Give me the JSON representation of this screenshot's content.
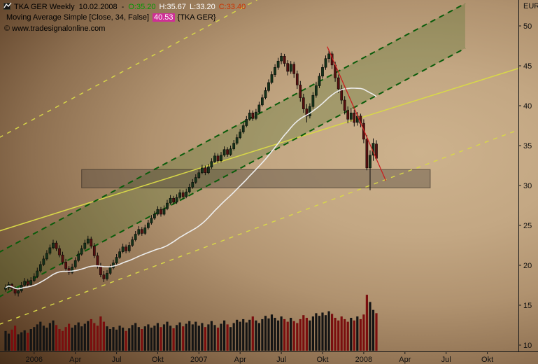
{
  "header": {
    "title": "TKA GER Weekly",
    "date": "10.02.2008",
    "sep": "-",
    "open_label": "O:35.20",
    "high_label": "H:35.67",
    "low_label": "L:33.20",
    "close_label": "C:33.40",
    "indicator": {
      "name": "Moving Average Simple [Close, 34, False]",
      "value": "40.53",
      "suffix": "{TKA GER}"
    },
    "copyright": "© www.tradesignalonline.com"
  },
  "chart_data": {
    "type": "candlestick_with_volume",
    "title": "TKA GER Weekly",
    "currency_label": "EUR",
    "price_ticks": [
      50,
      45,
      40,
      35,
      30,
      25,
      20,
      15,
      10
    ],
    "price_range": [
      10,
      50
    ],
    "time_ticks": [
      {
        "label": "2006",
        "week": 9
      },
      {
        "label": "Apr",
        "week": 22
      },
      {
        "label": "Jul",
        "week": 35
      },
      {
        "label": "Okt",
        "week": 48
      },
      {
        "label": "2007",
        "week": 61
      },
      {
        "label": "Apr",
        "week": 74
      },
      {
        "label": "Jul",
        "week": 87
      },
      {
        "label": "Okt",
        "week": 100
      },
      {
        "label": "2008",
        "week": 113
      },
      {
        "label": "Apr",
        "week": 126
      },
      {
        "label": "Jul",
        "week": 139
      },
      {
        "label": "Okt",
        "week": 152
      }
    ],
    "last_candle": {
      "date": "10.02.2008",
      "open": 35.2,
      "high": 35.67,
      "low": 33.2,
      "close": 33.4
    },
    "candles": [
      [
        17.0,
        17.6,
        16.7,
        17.2
      ],
      [
        17.2,
        17.9,
        16.9,
        17.6
      ],
      [
        17.6,
        17.8,
        16.8,
        17.1
      ],
      [
        17.1,
        17.4,
        16.2,
        16.5
      ],
      [
        16.5,
        17.2,
        16.1,
        16.8
      ],
      [
        16.8,
        17.9,
        16.6,
        17.5
      ],
      [
        17.5,
        18.4,
        17.3,
        18.0
      ],
      [
        18.0,
        18.3,
        17.3,
        17.6
      ],
      [
        17.6,
        18.5,
        17.4,
        18.1
      ],
      [
        18.1,
        19.0,
        17.9,
        18.6
      ],
      [
        18.6,
        19.7,
        18.4,
        19.3
      ],
      [
        19.3,
        20.5,
        19.1,
        20.1
      ],
      [
        20.1,
        21.2,
        19.9,
        20.8
      ],
      [
        20.8,
        21.9,
        20.6,
        21.5
      ],
      [
        21.5,
        22.6,
        21.3,
        22.2
      ],
      [
        22.2,
        23.2,
        22.0,
        22.8
      ],
      [
        22.8,
        23.1,
        21.8,
        22.1
      ],
      [
        22.1,
        22.5,
        21.0,
        21.3
      ],
      [
        21.3,
        21.7,
        20.1,
        20.4
      ],
      [
        20.4,
        20.8,
        19.3,
        19.6
      ],
      [
        19.6,
        19.9,
        18.8,
        19.1
      ],
      [
        19.1,
        20.2,
        18.9,
        19.8
      ],
      [
        19.8,
        21.0,
        19.6,
        20.6
      ],
      [
        20.6,
        21.8,
        20.4,
        21.4
      ],
      [
        21.4,
        22.5,
        21.2,
        22.1
      ],
      [
        22.1,
        23.2,
        21.9,
        22.8
      ],
      [
        22.8,
        23.7,
        22.6,
        23.3
      ],
      [
        23.3,
        23.6,
        22.1,
        22.4
      ],
      [
        22.4,
        22.8,
        20.9,
        21.2
      ],
      [
        21.2,
        21.6,
        19.6,
        19.9
      ],
      [
        19.9,
        20.3,
        18.5,
        18.8
      ],
      [
        18.8,
        19.3,
        17.9,
        18.3
      ],
      [
        18.3,
        19.4,
        18.1,
        19.0
      ],
      [
        19.0,
        20.1,
        18.8,
        19.7
      ],
      [
        19.7,
        20.7,
        19.5,
        20.3
      ],
      [
        20.3,
        21.4,
        20.1,
        21.0
      ],
      [
        21.0,
        22.1,
        20.8,
        21.7
      ],
      [
        21.7,
        22.7,
        21.5,
        22.3
      ],
      [
        22.3,
        22.6,
        21.5,
        21.8
      ],
      [
        21.8,
        22.9,
        21.6,
        22.5
      ],
      [
        22.5,
        23.6,
        22.3,
        23.2
      ],
      [
        23.2,
        24.3,
        23.0,
        23.9
      ],
      [
        23.9,
        24.9,
        23.7,
        24.5
      ],
      [
        24.5,
        24.8,
        23.7,
        24.0
      ],
      [
        24.0,
        25.1,
        23.8,
        24.7
      ],
      [
        24.7,
        25.7,
        24.5,
        25.3
      ],
      [
        25.3,
        26.3,
        25.1,
        25.9
      ],
      [
        25.9,
        26.8,
        25.7,
        26.4
      ],
      [
        26.4,
        27.4,
        26.2,
        27.0
      ],
      [
        27.0,
        27.3,
        26.1,
        26.4
      ],
      [
        26.4,
        27.5,
        26.2,
        27.1
      ],
      [
        27.1,
        28.2,
        26.9,
        27.8
      ],
      [
        27.8,
        28.8,
        27.6,
        28.4
      ],
      [
        28.4,
        28.7,
        27.6,
        27.9
      ],
      [
        27.9,
        28.9,
        27.7,
        28.5
      ],
      [
        28.5,
        29.5,
        28.3,
        29.1
      ],
      [
        29.1,
        29.4,
        28.3,
        28.6
      ],
      [
        28.6,
        29.6,
        28.4,
        29.2
      ],
      [
        29.2,
        30.2,
        29.0,
        29.8
      ],
      [
        29.8,
        30.8,
        29.6,
        30.4
      ],
      [
        30.4,
        31.4,
        30.2,
        31.0
      ],
      [
        31.0,
        32.0,
        30.8,
        31.6
      ],
      [
        31.6,
        32.6,
        31.4,
        32.2
      ],
      [
        32.2,
        32.5,
        31.3,
        31.6
      ],
      [
        31.6,
        32.7,
        31.4,
        32.3
      ],
      [
        32.3,
        33.4,
        32.1,
        33.0
      ],
      [
        33.0,
        34.1,
        32.8,
        33.7
      ],
      [
        33.7,
        34.0,
        32.8,
        33.1
      ],
      [
        33.1,
        34.2,
        32.9,
        33.8
      ],
      [
        33.8,
        34.9,
        33.6,
        34.5
      ],
      [
        34.5,
        34.8,
        33.6,
        33.9
      ],
      [
        33.9,
        35.0,
        33.7,
        34.6
      ],
      [
        34.6,
        35.7,
        34.4,
        35.3
      ],
      [
        35.3,
        36.4,
        35.1,
        36.0
      ],
      [
        36.0,
        37.1,
        35.8,
        36.7
      ],
      [
        36.7,
        37.9,
        36.5,
        37.5
      ],
      [
        37.5,
        38.7,
        37.3,
        38.3
      ],
      [
        38.3,
        39.5,
        38.1,
        39.1
      ],
      [
        39.1,
        39.4,
        38.1,
        38.4
      ],
      [
        38.4,
        39.6,
        38.2,
        39.2
      ],
      [
        39.2,
        40.5,
        39.0,
        40.1
      ],
      [
        40.1,
        41.4,
        39.9,
        41.0
      ],
      [
        41.0,
        42.3,
        40.8,
        41.9
      ],
      [
        41.9,
        43.3,
        41.7,
        42.9
      ],
      [
        42.9,
        44.3,
        42.7,
        43.9
      ],
      [
        43.9,
        45.2,
        43.6,
        44.8
      ],
      [
        44.8,
        46.0,
        44.5,
        45.6
      ],
      [
        45.6,
        46.6,
        45.2,
        46.2
      ],
      [
        46.2,
        46.5,
        44.9,
        45.3
      ],
      [
        45.3,
        45.7,
        43.8,
        44.3
      ],
      [
        44.3,
        45.6,
        44.0,
        45.2
      ],
      [
        45.2,
        45.5,
        43.5,
        44.0
      ],
      [
        44.0,
        44.4,
        42.1,
        42.6
      ],
      [
        42.6,
        43.1,
        40.5,
        41.0
      ],
      [
        41.0,
        41.5,
        39.1,
        39.6
      ],
      [
        39.6,
        40.2,
        37.9,
        38.7
      ],
      [
        38.7,
        40.3,
        38.4,
        39.9
      ],
      [
        39.9,
        41.7,
        39.6,
        41.3
      ],
      [
        41.3,
        43.0,
        41.0,
        42.5
      ],
      [
        42.5,
        44.1,
        42.2,
        43.7
      ],
      [
        43.7,
        45.2,
        43.4,
        44.8
      ],
      [
        44.8,
        46.3,
        44.5,
        45.9
      ],
      [
        45.9,
        47.0,
        45.4,
        46.5
      ],
      [
        46.5,
        46.8,
        44.6,
        45.1
      ],
      [
        45.1,
        45.5,
        43.0,
        43.5
      ],
      [
        43.5,
        43.9,
        41.6,
        42.1
      ],
      [
        42.1,
        42.6,
        40.2,
        40.7
      ],
      [
        40.7,
        41.2,
        38.9,
        39.4
      ],
      [
        39.4,
        39.9,
        37.8,
        38.3
      ],
      [
        38.3,
        39.7,
        38.0,
        39.1
      ],
      [
        39.1,
        39.5,
        37.4,
        37.9
      ],
      [
        37.9,
        39.2,
        37.5,
        38.7
      ],
      [
        38.7,
        39.0,
        37.3,
        37.8
      ],
      [
        37.8,
        38.3,
        35.3,
        35.8
      ],
      [
        35.8,
        36.3,
        31.9,
        32.2
      ],
      [
        32.2,
        34.4,
        29.4,
        33.8
      ],
      [
        33.8,
        35.9,
        33.1,
        35.3
      ],
      [
        35.2,
        35.67,
        33.2,
        33.4
      ]
    ],
    "volume": [
      30,
      26,
      32,
      38,
      25,
      28,
      31,
      27,
      33,
      36,
      40,
      44,
      38,
      35,
      42,
      46,
      39,
      33,
      30,
      36,
      41,
      35,
      39,
      43,
      37,
      41,
      45,
      48,
      42,
      38,
      52,
      44,
      37,
      33,
      36,
      32,
      38,
      35,
      30,
      34,
      39,
      42,
      36,
      33,
      37,
      40,
      35,
      38,
      42,
      36,
      40,
      44,
      38,
      34,
      39,
      43,
      37,
      41,
      45,
      40,
      44,
      38,
      42,
      36,
      40,
      45,
      39,
      35,
      41,
      46,
      40,
      36,
      42,
      47,
      44,
      48,
      43,
      47,
      52,
      46,
      42,
      48,
      53,
      49,
      55,
      50,
      46,
      52,
      48,
      44,
      50,
      45,
      42,
      48,
      54,
      50,
      46,
      52,
      57,
      53,
      58,
      54,
      60,
      56,
      50,
      46,
      52,
      48,
      44,
      50,
      46,
      52,
      48,
      55,
      85,
      74,
      62,
      57
    ],
    "overlays": {
      "sma": {
        "period": 34,
        "source": "Close",
        "color": "#ededed",
        "last_value": 40.53
      },
      "green_channel": {
        "color": "#0b5c0b",
        "fill": "rgba(72,112,40,0.28)",
        "lower": [
          [
            -5,
            15.4
          ],
          [
            145,
            47.2
          ]
        ],
        "upper": [
          [
            -5,
            21.0
          ],
          [
            145,
            52.8
          ]
        ]
      },
      "yellow_solid": {
        "color": "#d8d848",
        "points": [
          [
            -2,
            24.3
          ],
          [
            162,
            44.7
          ]
        ]
      },
      "yellow_dash_upper": {
        "color": "#d8d848",
        "points": [
          [
            -2,
            36.0
          ],
          [
            80,
            53.4
          ]
        ]
      },
      "yellow_dash_lower": {
        "color": "#d8d848",
        "points": [
          [
            -2,
            12.6
          ],
          [
            162,
            37.0
          ]
        ]
      },
      "red_trendline": {
        "color": "#c92020",
        "points": [
          [
            101.5,
            47.4
          ],
          [
            120,
            30.6
          ]
        ]
      },
      "support_box": {
        "weeks": [
          24,
          134
        ],
        "prices": [
          29.7,
          32.0
        ],
        "fill": "rgba(78,68,58,0.40)"
      }
    },
    "colors": {
      "up": "#16321a",
      "down": "#561010",
      "wick": "#0a0a0a",
      "vol_up": "#141414",
      "vol_down": "#7a0e0e",
      "axis_text": "#111111",
      "axis_line": "#1a1a1a"
    }
  }
}
